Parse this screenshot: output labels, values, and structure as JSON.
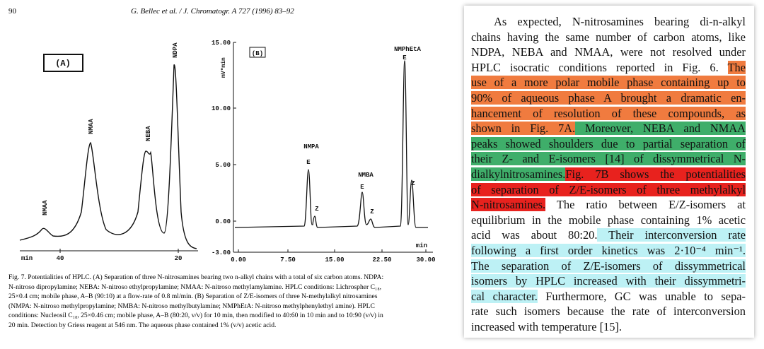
{
  "header": {
    "page_number": "90",
    "citation": "G. Bellec et al. / J. Chromatogr. A 727 (1996) 83–92"
  },
  "figure_a": {
    "label": "(A)",
    "peaks": [
      "NMAA",
      "NMAA",
      "NEBA",
      "NDPA"
    ],
    "x_axis": [
      "min",
      "40",
      "20"
    ]
  },
  "figure_b": {
    "label": "(B)",
    "y_unit": "mV*min",
    "y_ticks": [
      "15.00",
      "10.00",
      "5.00",
      "0.00",
      "-3.00"
    ],
    "x_ticks": [
      "0.00",
      "7.50",
      "15.00",
      "22.50",
      "30.00"
    ],
    "x_unit": "min",
    "peaks": [
      {
        "name": "NMPA",
        "e": "E",
        "z": "Z"
      },
      {
        "name": "NMBA",
        "e": "E",
        "z": "Z"
      },
      {
        "name": "NMPhEtA",
        "e": "E",
        "z": "Z"
      }
    ]
  },
  "caption": [
    "Fig. 7. Potentialities of HPLC. (A) Separation of three N-nitrosamines bearing two n-alkyl chains with a total of six carbon atoms. NDPA:",
    "N-nitroso dipropylamine; NEBA: N-nitroso ethylpropylamine; NMAA: N-nitroso methylamylamine. HPLC conditions: Lichrospher C₁₈,",
    "25×0.4 cm; mobile phase, A–B (90:10) at a flow-rate of 0.8 ml/min. (B) Separation of Z/E-isomers of three N-methylalkyl nitrosamines",
    "(NMPA: N-nitroso methylpropylamine; NMBA: N-nitroso methylbutylamine; NMPhEtA: N-nitroso methylphenylethyl amine). HPLC",
    "conditions: Nucleosil C₁₈, 25×0.46 cm; mobile phase, A–B (80:20, v/v) for 10 min, then modified to 40:60 in 10 min and to 10:90 (v/v) in",
    "20 min. Detection by Griess reagent at 546 nm. The aqueous phase contained 1% (v/v) acetic acid."
  ],
  "body": {
    "lines": [
      [
        "As expected, N-nitrosamines bearing di-n-alkyl"
      ],
      [
        "chains having the same number of carbon atoms, like"
      ],
      [
        "NDPA, NEBA and NMAA, were not resolved under"
      ],
      [
        "HPLC isocratic conditions reported in Fig. 6. ",
        "The"
      ],
      [
        "use of a more polar mobile phase containing up to"
      ],
      [
        "90% of aqueous phase A brought a dramatic en-"
      ],
      [
        "hancement of resolution of these compounds, as"
      ],
      [
        "shown in Fig. 7A.",
        " Moreover, NEBA and NMAA"
      ],
      [
        "peaks showed shoulders due to partial separation of"
      ],
      [
        "their Z- and E-isomers [14] of dissymmetrical N-"
      ],
      [
        "dialkylnitrosamines.",
        "Fig. 7B shows the potentialities"
      ],
      [
        "of separation of Z/E-isomers of three methylalkyl"
      ],
      [
        "N-nitrosamines.",
        "  The ratio between E/Z-isomers at"
      ],
      [
        "equilibrium in the mobile phase containing 1% acetic"
      ],
      [
        "acid was about 80:20.",
        " Their interconversion rate"
      ],
      [
        "following a first order kinetics was 2·10⁻⁴ min⁻¹."
      ],
      [
        "The separation of Z/E-isomers of dissymmetrical"
      ],
      [
        "isomers by HPLC increased with their dissymmetri-"
      ],
      [
        "cal character.",
        " Furthermore, GC was unable to sepa-"
      ],
      [
        "rate such isomers because the rate of interconversion"
      ],
      [
        "increased with temperature [15]."
      ]
    ]
  }
}
